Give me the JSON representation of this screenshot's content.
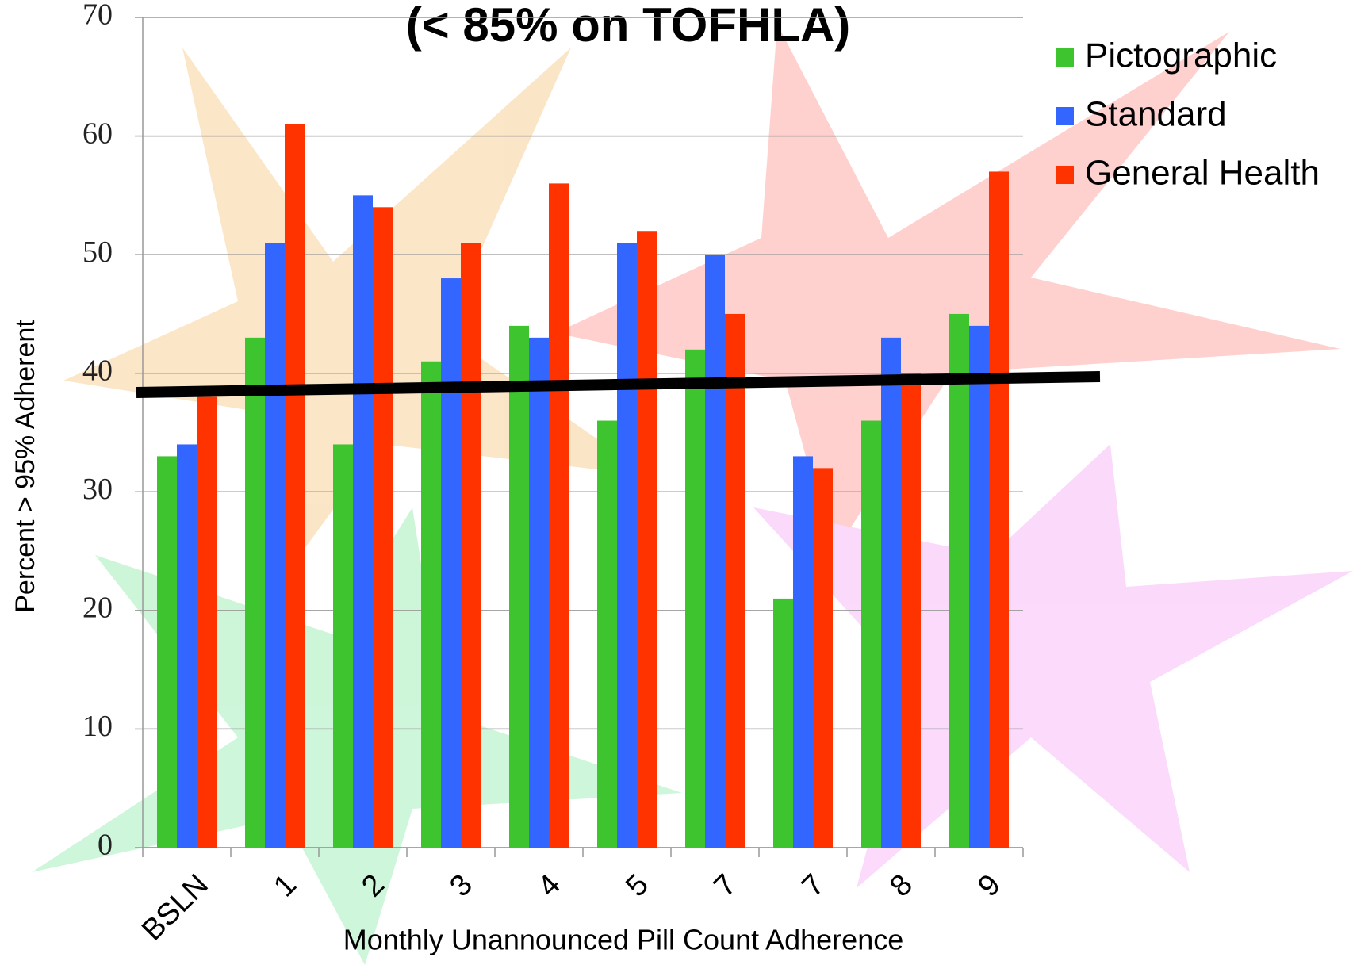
{
  "chart_data": {
    "type": "bar",
    "title": "(< 85% on TOFHLA)",
    "x_label": "Monthly Unannounced Pill Count Adherence",
    "y_label": "Percent > 95% Adherent",
    "categories": [
      "BSLN",
      "1",
      "2",
      "3",
      "4",
      "5",
      "7",
      "7",
      "8",
      "9"
    ],
    "series": [
      {
        "name": "Pictographic",
        "color": "#3dc42f",
        "values": [
          33,
          43,
          34,
          41,
          44,
          36,
          42,
          21,
          36,
          45
        ]
      },
      {
        "name": "Standard",
        "color": "#3366ff",
        "values": [
          34,
          51,
          55,
          48,
          43,
          51,
          50,
          33,
          43,
          44
        ]
      },
      {
        "name": "General Health",
        "color": "#ff3300",
        "values": [
          38,
          61,
          54,
          51,
          56,
          52,
          45,
          32,
          40,
          57
        ]
      }
    ],
    "ylim": [
      0,
      70
    ],
    "yticks": [
      0,
      10,
      20,
      30,
      40,
      50,
      60,
      70
    ],
    "grid": true,
    "legend": "right"
  }
}
